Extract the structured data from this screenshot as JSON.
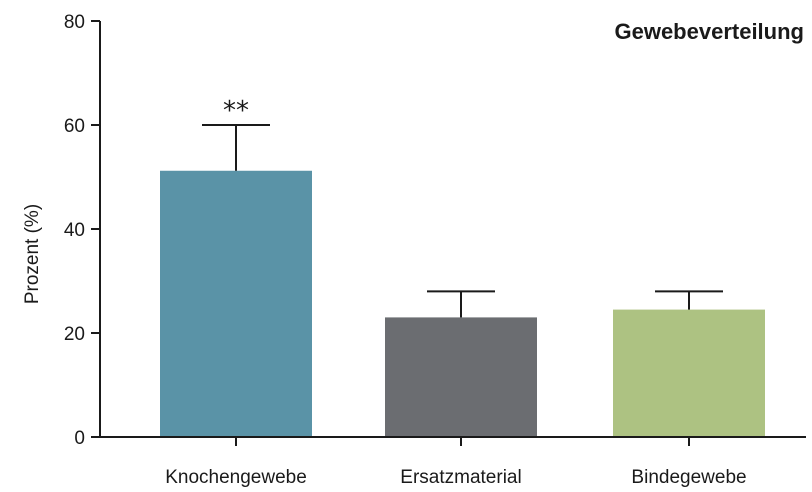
{
  "chart_data": {
    "type": "bar",
    "title": "Gewebeverteilung",
    "xlabel": "",
    "ylabel": "Prozent (%)",
    "ylim": [
      0,
      80
    ],
    "yticks": [
      0,
      20,
      40,
      60,
      80
    ],
    "categories": [
      "Knochengewebe",
      "Ersatzmaterial",
      "Bindegewebe"
    ],
    "values": [
      51.2,
      23,
      24.5
    ],
    "error_upper": [
      60,
      28,
      28
    ],
    "colors": [
      "#5a93a7",
      "#6b6d71",
      "#adc282"
    ],
    "annotations": [
      {
        "category": "Knochengewebe",
        "text": "**"
      }
    ],
    "grid": false,
    "legend": "none"
  }
}
